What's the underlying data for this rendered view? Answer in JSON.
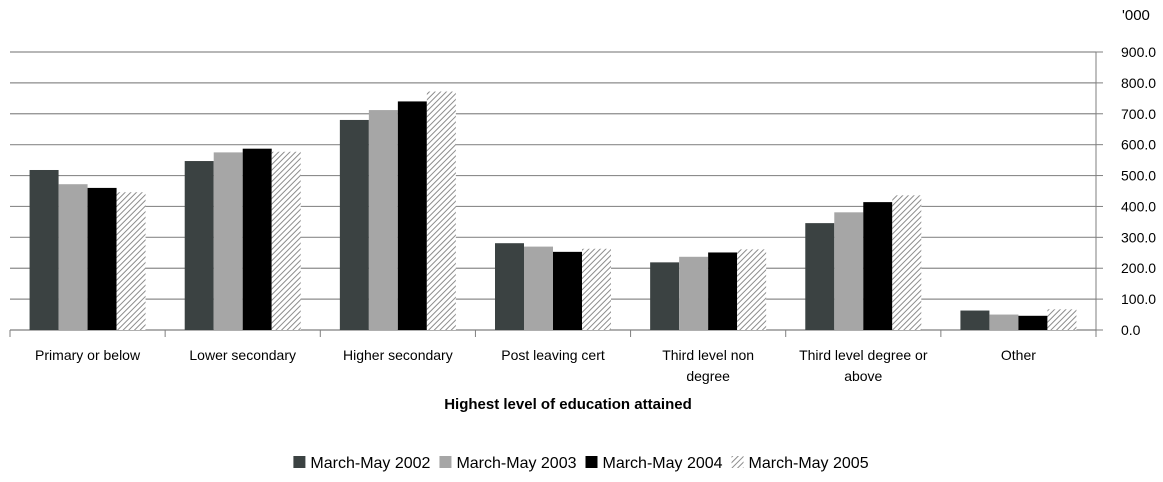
{
  "chart_data": {
    "type": "bar",
    "unit_label": "'000",
    "xlabel": "Highest level of education attained",
    "ylabel": "",
    "ylim": [
      0,
      900
    ],
    "y_ticks": [
      "0.0",
      "100.0",
      "200.0",
      "300.0",
      "400.0",
      "500.0",
      "600.0",
      "700.0",
      "800.0",
      "900.0"
    ],
    "y_axis_side": "right",
    "grid": true,
    "legend_position": "bottom",
    "categories": [
      [
        "Primary or below"
      ],
      [
        "Lower secondary"
      ],
      [
        "Higher secondary"
      ],
      [
        "Post leaving cert"
      ],
      [
        "Third level non",
        "degree"
      ],
      [
        "Third level degree or",
        "above"
      ],
      [
        "Other"
      ]
    ],
    "series": [
      {
        "name": "March-May 2002",
        "color": "#3b4242",
        "pattern": "solid",
        "values": [
          518,
          547,
          680,
          281,
          219,
          346,
          63
        ]
      },
      {
        "name": "March-May 2003",
        "color": "#a6a6a6",
        "pattern": "solid",
        "values": [
          472,
          575,
          712,
          270,
          237,
          381,
          50
        ]
      },
      {
        "name": "March-May 2004",
        "color": "#000000",
        "pattern": "solid",
        "values": [
          460,
          587,
          740,
          253,
          251,
          414,
          46
        ]
      },
      {
        "name": "March-May 2005",
        "color": "#9a9a9a",
        "pattern": "hatch",
        "values": [
          446,
          577,
          772,
          263,
          261,
          436,
          67
        ]
      }
    ]
  }
}
